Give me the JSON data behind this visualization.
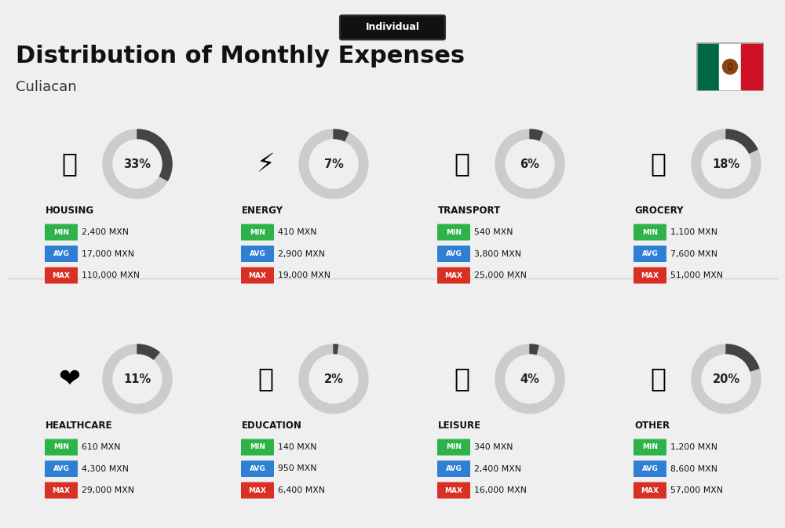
{
  "title": "Distribution of Monthly Expenses",
  "subtitle": "Individual",
  "city": "Culiacan",
  "background_color": "#efefef",
  "categories": [
    {
      "name": "HOUSING",
      "pct": 33,
      "min": "2,400 MXN",
      "avg": "17,000 MXN",
      "max": "110,000 MXN",
      "row": 0,
      "col": 0
    },
    {
      "name": "ENERGY",
      "pct": 7,
      "min": "410 MXN",
      "avg": "2,900 MXN",
      "max": "19,000 MXN",
      "row": 0,
      "col": 1
    },
    {
      "name": "TRANSPORT",
      "pct": 6,
      "min": "540 MXN",
      "avg": "3,800 MXN",
      "max": "25,000 MXN",
      "row": 0,
      "col": 2
    },
    {
      "name": "GROCERY",
      "pct": 18,
      "min": "1,100 MXN",
      "avg": "7,600 MXN",
      "max": "51,000 MXN",
      "row": 0,
      "col": 3
    },
    {
      "name": "HEALTHCARE",
      "pct": 11,
      "min": "610 MXN",
      "avg": "4,300 MXN",
      "max": "29,000 MXN",
      "row": 1,
      "col": 0
    },
    {
      "name": "EDUCATION",
      "pct": 2,
      "min": "140 MXN",
      "avg": "950 MXN",
      "max": "6,400 MXN",
      "row": 1,
      "col": 1
    },
    {
      "name": "LEISURE",
      "pct": 4,
      "min": "340 MXN",
      "avg": "2,400 MXN",
      "max": "16,000 MXN",
      "row": 1,
      "col": 2
    },
    {
      "name": "OTHER",
      "pct": 20,
      "min": "1,200 MXN",
      "avg": "8,600 MXN",
      "max": "57,000 MXN",
      "row": 1,
      "col": 3
    }
  ],
  "min_color": "#2db34a",
  "avg_color": "#2f7fd4",
  "max_color": "#d93025",
  "category_color": "#111111",
  "pct_color": "#222222",
  "arc_filled_color": "#444444",
  "arc_bg_color": "#cccccc",
  "flag_green": "#006847",
  "flag_red": "#ce1126",
  "title_fontsize": 22,
  "city_fontsize": 13,
  "subtitle_fontsize": 9,
  "cat_fontsize": 8.5,
  "pct_fontsize": 10.5,
  "label_fontsize": 6.5,
  "value_fontsize": 7.8
}
